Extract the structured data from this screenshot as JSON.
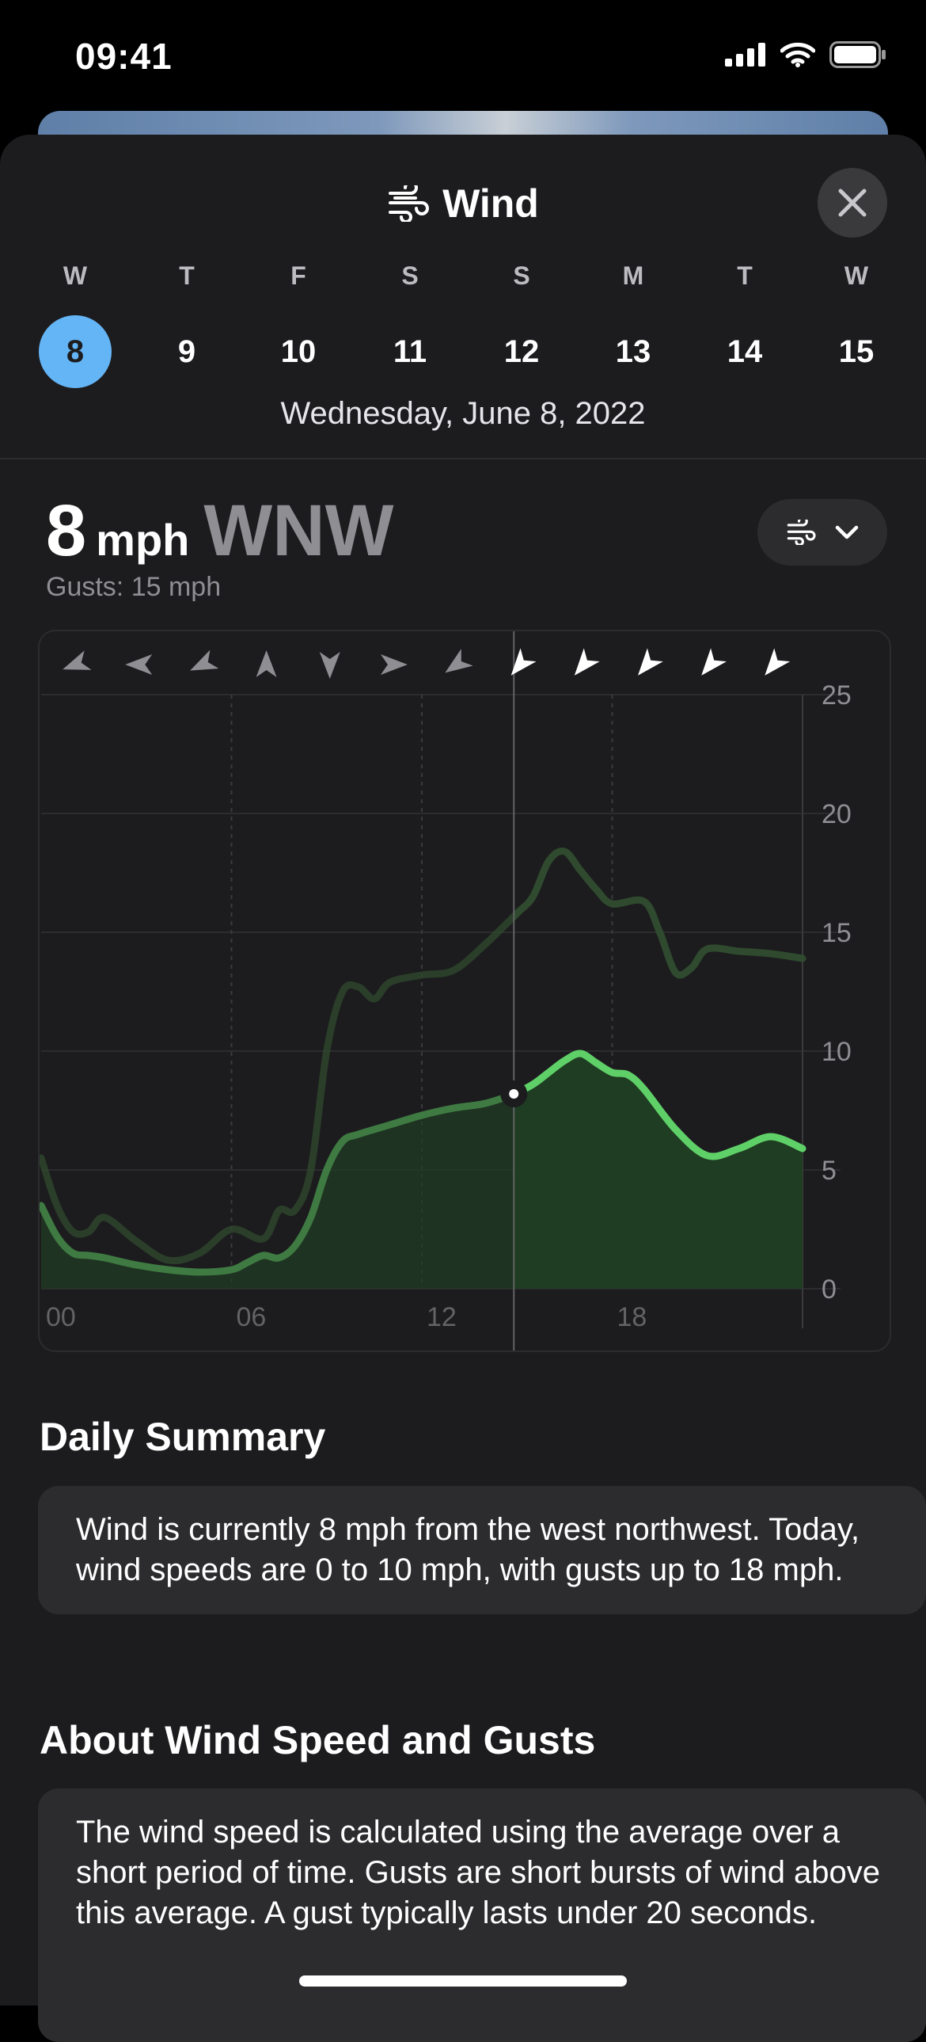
{
  "status": {
    "time": "09:41"
  },
  "sheet": {
    "title": "Wind",
    "title_icon": "wind-icon",
    "close_icon": "close-icon"
  },
  "days": [
    {
      "dow": "W",
      "num": "8",
      "selected": true
    },
    {
      "dow": "T",
      "num": "9"
    },
    {
      "dow": "F",
      "num": "10"
    },
    {
      "dow": "S",
      "num": "11"
    },
    {
      "dow": "S",
      "num": "12"
    },
    {
      "dow": "M",
      "num": "13"
    },
    {
      "dow": "T",
      "num": "14"
    },
    {
      "dow": "W",
      "num": "15"
    }
  ],
  "selected_date": "Wednesday, June 8, 2022",
  "current": {
    "speed": "8",
    "unit": "mph",
    "direction": "WNW",
    "gusts": "Gusts: 15 mph"
  },
  "colors": {
    "accent": "#64b5f6",
    "wind_line": "#5fd068",
    "gust_line": "#2f4a2e",
    "fill": "#1f3d22"
  },
  "chart_data": {
    "type": "line",
    "x_ticks": [
      "00",
      "06",
      "12",
      "18"
    ],
    "y_ticks": [
      "0",
      "5",
      "10",
      "15",
      "20",
      "25"
    ],
    "ylim": [
      0,
      25
    ],
    "xlim": [
      0,
      24
    ],
    "current_hour": 14.9,
    "series": [
      {
        "role": "wind",
        "x": [
          0,
          0.5,
          1,
          1.5,
          2,
          3,
          4,
          5,
          6,
          6.5,
          7,
          7.5,
          8,
          8.5,
          9,
          9.5,
          10,
          11,
          12,
          13,
          14,
          14.9,
          15.5,
          16,
          16.5,
          17,
          17.5,
          18,
          18.5,
          19,
          20,
          21,
          22,
          23,
          24
        ],
        "values": [
          3.5,
          2.2,
          1.5,
          1.4,
          1.3,
          1,
          0.8,
          0.7,
          0.8,
          1.1,
          1.4,
          1.3,
          1.8,
          3,
          5,
          6.2,
          6.5,
          6.9,
          7.3,
          7.6,
          7.8,
          8.2,
          8.6,
          9.1,
          9.6,
          9.9,
          9.5,
          9.1,
          9,
          8.4,
          6.7,
          5.6,
          5.9,
          6.4,
          5.9
        ]
      },
      {
        "role": "gusts",
        "x": [
          0,
          0.5,
          1,
          1.5,
          2,
          3,
          4,
          5,
          6,
          7,
          7.5,
          8,
          8.5,
          9,
          9.5,
          10,
          10.5,
          11,
          12,
          13,
          14,
          15,
          15.5,
          16,
          16.5,
          17,
          17.5,
          18,
          19,
          19.5,
          20,
          20.5,
          21,
          22,
          23,
          24
        ],
        "values": [
          5.5,
          3.5,
          2.4,
          2.4,
          3,
          2,
          1.2,
          1.5,
          2.5,
          2.1,
          3.3,
          3.3,
          5,
          10,
          12.5,
          12.7,
          12.2,
          12.9,
          13.2,
          13.4,
          14.5,
          15.8,
          16.5,
          18,
          18.4,
          17.6,
          16.8,
          16.2,
          16.3,
          15,
          13.3,
          13.5,
          14.3,
          14.2,
          14.1,
          13.9
        ]
      }
    ],
    "direction_arrows": [
      {
        "hour": 1,
        "angle": -110,
        "past": true
      },
      {
        "hour": 3,
        "angle": -90,
        "past": true
      },
      {
        "hour": 5,
        "angle": -115,
        "past": true
      },
      {
        "hour": 7,
        "angle": 0,
        "past": true
      },
      {
        "hour": 9,
        "angle": 180,
        "past": true
      },
      {
        "hour": 11,
        "angle": 90,
        "past": true
      },
      {
        "hour": 13,
        "angle": -125,
        "past": true
      },
      {
        "hour": 15,
        "angle": -140,
        "past": false
      },
      {
        "hour": 17,
        "angle": -140,
        "past": false
      },
      {
        "hour": 19,
        "angle": -140,
        "past": false
      },
      {
        "hour": 21,
        "angle": -140,
        "past": false
      },
      {
        "hour": 23,
        "angle": -140,
        "past": false
      }
    ]
  },
  "summary": {
    "heading": "Daily Summary",
    "text": "Wind is currently 8 mph from the west northwest. Today, wind speeds are 0 to 10 mph, with gusts up to 18 mph."
  },
  "about": {
    "heading": "About Wind Speed and Gusts",
    "text": "The wind speed is calculated using the average over a short period of time. Gusts are short bursts of wind above this average. A gust typically lasts under 20 seconds."
  }
}
